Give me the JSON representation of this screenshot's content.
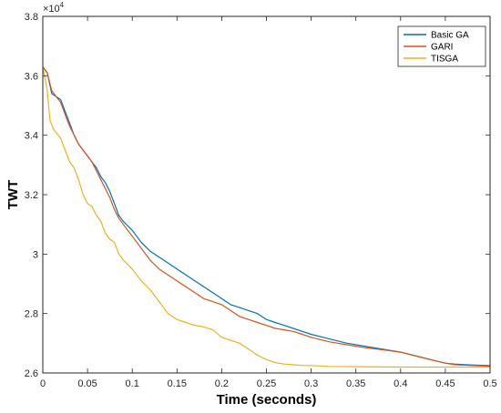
{
  "chart_data": {
    "type": "line",
    "title": "",
    "xlabel": "Time (seconds)",
    "ylabel": "TWT",
    "y_multiplier_label": "×10",
    "y_multiplier_exponent": "4",
    "xlim": [
      0,
      0.5
    ],
    "ylim": [
      2.6,
      3.8
    ],
    "x_ticks": [
      0,
      0.05,
      0.1,
      0.15,
      0.2,
      0.25,
      0.3,
      0.35,
      0.4,
      0.45,
      0.5
    ],
    "x_tick_labels": [
      "0",
      "0.05",
      "0.1",
      "0.15",
      "0.2",
      "0.25",
      "0.3",
      "0.35",
      "0.4",
      "0.45",
      "0.5"
    ],
    "y_ticks": [
      2.6,
      2.8,
      3.0,
      3.2,
      3.4,
      3.6,
      3.8
    ],
    "y_tick_labels": [
      "2.6",
      "2.8",
      "3",
      "3.2",
      "3.4",
      "3.6",
      "3.8"
    ],
    "grid": false,
    "legend_position": "top-right",
    "series": [
      {
        "name": "Basic GA",
        "color": "#0072BD",
        "points": [
          [
            0,
            3.63
          ],
          [
            0.005,
            3.61
          ],
          [
            0.01,
            3.54
          ],
          [
            0.015,
            3.53
          ],
          [
            0.02,
            3.52
          ],
          [
            0.025,
            3.48
          ],
          [
            0.03,
            3.44
          ],
          [
            0.035,
            3.4
          ],
          [
            0.04,
            3.37
          ],
          [
            0.045,
            3.35
          ],
          [
            0.05,
            3.33
          ],
          [
            0.055,
            3.31
          ],
          [
            0.06,
            3.29
          ],
          [
            0.065,
            3.26
          ],
          [
            0.07,
            3.24
          ],
          [
            0.075,
            3.21
          ],
          [
            0.08,
            3.17
          ],
          [
            0.085,
            3.13
          ],
          [
            0.09,
            3.11
          ],
          [
            0.1,
            3.08
          ],
          [
            0.11,
            3.04
          ],
          [
            0.12,
            3.01
          ],
          [
            0.13,
            2.99
          ],
          [
            0.14,
            2.97
          ],
          [
            0.15,
            2.95
          ],
          [
            0.16,
            2.93
          ],
          [
            0.17,
            2.91
          ],
          [
            0.18,
            2.89
          ],
          [
            0.19,
            2.87
          ],
          [
            0.2,
            2.85
          ],
          [
            0.21,
            2.83
          ],
          [
            0.22,
            2.82
          ],
          [
            0.23,
            2.81
          ],
          [
            0.24,
            2.8
          ],
          [
            0.25,
            2.78
          ],
          [
            0.26,
            2.77
          ],
          [
            0.27,
            2.76
          ],
          [
            0.28,
            2.75
          ],
          [
            0.29,
            2.74
          ],
          [
            0.3,
            2.73
          ],
          [
            0.32,
            2.715
          ],
          [
            0.34,
            2.7
          ],
          [
            0.36,
            2.69
          ],
          [
            0.38,
            2.68
          ],
          [
            0.4,
            2.67
          ],
          [
            0.42,
            2.655
          ],
          [
            0.44,
            2.64
          ],
          [
            0.45,
            2.633
          ],
          [
            0.46,
            2.63
          ],
          [
            0.48,
            2.627
          ],
          [
            0.5,
            2.625
          ]
        ]
      },
      {
        "name": "GARI",
        "color": "#D95319",
        "points": [
          [
            0,
            3.63
          ],
          [
            0.005,
            3.61
          ],
          [
            0.01,
            3.55
          ],
          [
            0.015,
            3.53
          ],
          [
            0.02,
            3.51
          ],
          [
            0.025,
            3.47
          ],
          [
            0.03,
            3.43
          ],
          [
            0.035,
            3.4
          ],
          [
            0.04,
            3.37
          ],
          [
            0.045,
            3.35
          ],
          [
            0.05,
            3.33
          ],
          [
            0.055,
            3.31
          ],
          [
            0.06,
            3.28
          ],
          [
            0.065,
            3.25
          ],
          [
            0.07,
            3.22
          ],
          [
            0.075,
            3.19
          ],
          [
            0.08,
            3.15
          ],
          [
            0.085,
            3.12
          ],
          [
            0.09,
            3.1
          ],
          [
            0.1,
            3.06
          ],
          [
            0.11,
            3.02
          ],
          [
            0.12,
            2.98
          ],
          [
            0.13,
            2.95
          ],
          [
            0.14,
            2.93
          ],
          [
            0.15,
            2.91
          ],
          [
            0.16,
            2.89
          ],
          [
            0.17,
            2.87
          ],
          [
            0.18,
            2.85
          ],
          [
            0.19,
            2.84
          ],
          [
            0.2,
            2.83
          ],
          [
            0.21,
            2.81
          ],
          [
            0.22,
            2.79
          ],
          [
            0.23,
            2.78
          ],
          [
            0.24,
            2.77
          ],
          [
            0.25,
            2.76
          ],
          [
            0.26,
            2.75
          ],
          [
            0.27,
            2.745
          ],
          [
            0.28,
            2.74
          ],
          [
            0.29,
            2.73
          ],
          [
            0.3,
            2.72
          ],
          [
            0.32,
            2.705
          ],
          [
            0.34,
            2.695
          ],
          [
            0.36,
            2.685
          ],
          [
            0.38,
            2.678
          ],
          [
            0.4,
            2.67
          ],
          [
            0.42,
            2.655
          ],
          [
            0.44,
            2.64
          ],
          [
            0.45,
            2.633
          ],
          [
            0.46,
            2.628
          ],
          [
            0.48,
            2.625
          ],
          [
            0.5,
            2.623
          ]
        ]
      },
      {
        "name": "TISGA",
        "color": "#EDB120",
        "points": [
          [
            0,
            3.63
          ],
          [
            0.005,
            3.55
          ],
          [
            0.008,
            3.45
          ],
          [
            0.012,
            3.42
          ],
          [
            0.02,
            3.39
          ],
          [
            0.025,
            3.35
          ],
          [
            0.03,
            3.31
          ],
          [
            0.035,
            3.29
          ],
          [
            0.04,
            3.25
          ],
          [
            0.045,
            3.2
          ],
          [
            0.05,
            3.17
          ],
          [
            0.055,
            3.16
          ],
          [
            0.06,
            3.13
          ],
          [
            0.065,
            3.11
          ],
          [
            0.07,
            3.07
          ],
          [
            0.075,
            3.05
          ],
          [
            0.08,
            3.04
          ],
          [
            0.085,
            3.0
          ],
          [
            0.09,
            2.98
          ],
          [
            0.1,
            2.95
          ],
          [
            0.11,
            2.91
          ],
          [
            0.12,
            2.88
          ],
          [
            0.13,
            2.84
          ],
          [
            0.14,
            2.8
          ],
          [
            0.15,
            2.78
          ],
          [
            0.16,
            2.77
          ],
          [
            0.17,
            2.76
          ],
          [
            0.18,
            2.755
          ],
          [
            0.19,
            2.745
          ],
          [
            0.2,
            2.72
          ],
          [
            0.21,
            2.71
          ],
          [
            0.22,
            2.7
          ],
          [
            0.23,
            2.68
          ],
          [
            0.24,
            2.66
          ],
          [
            0.25,
            2.645
          ],
          [
            0.26,
            2.635
          ],
          [
            0.27,
            2.63
          ],
          [
            0.28,
            2.628
          ],
          [
            0.29,
            2.625
          ],
          [
            0.3,
            2.625
          ],
          [
            0.32,
            2.622
          ],
          [
            0.35,
            2.621
          ],
          [
            0.4,
            2.62
          ],
          [
            0.45,
            2.62
          ],
          [
            0.5,
            2.62
          ]
        ]
      }
    ]
  }
}
